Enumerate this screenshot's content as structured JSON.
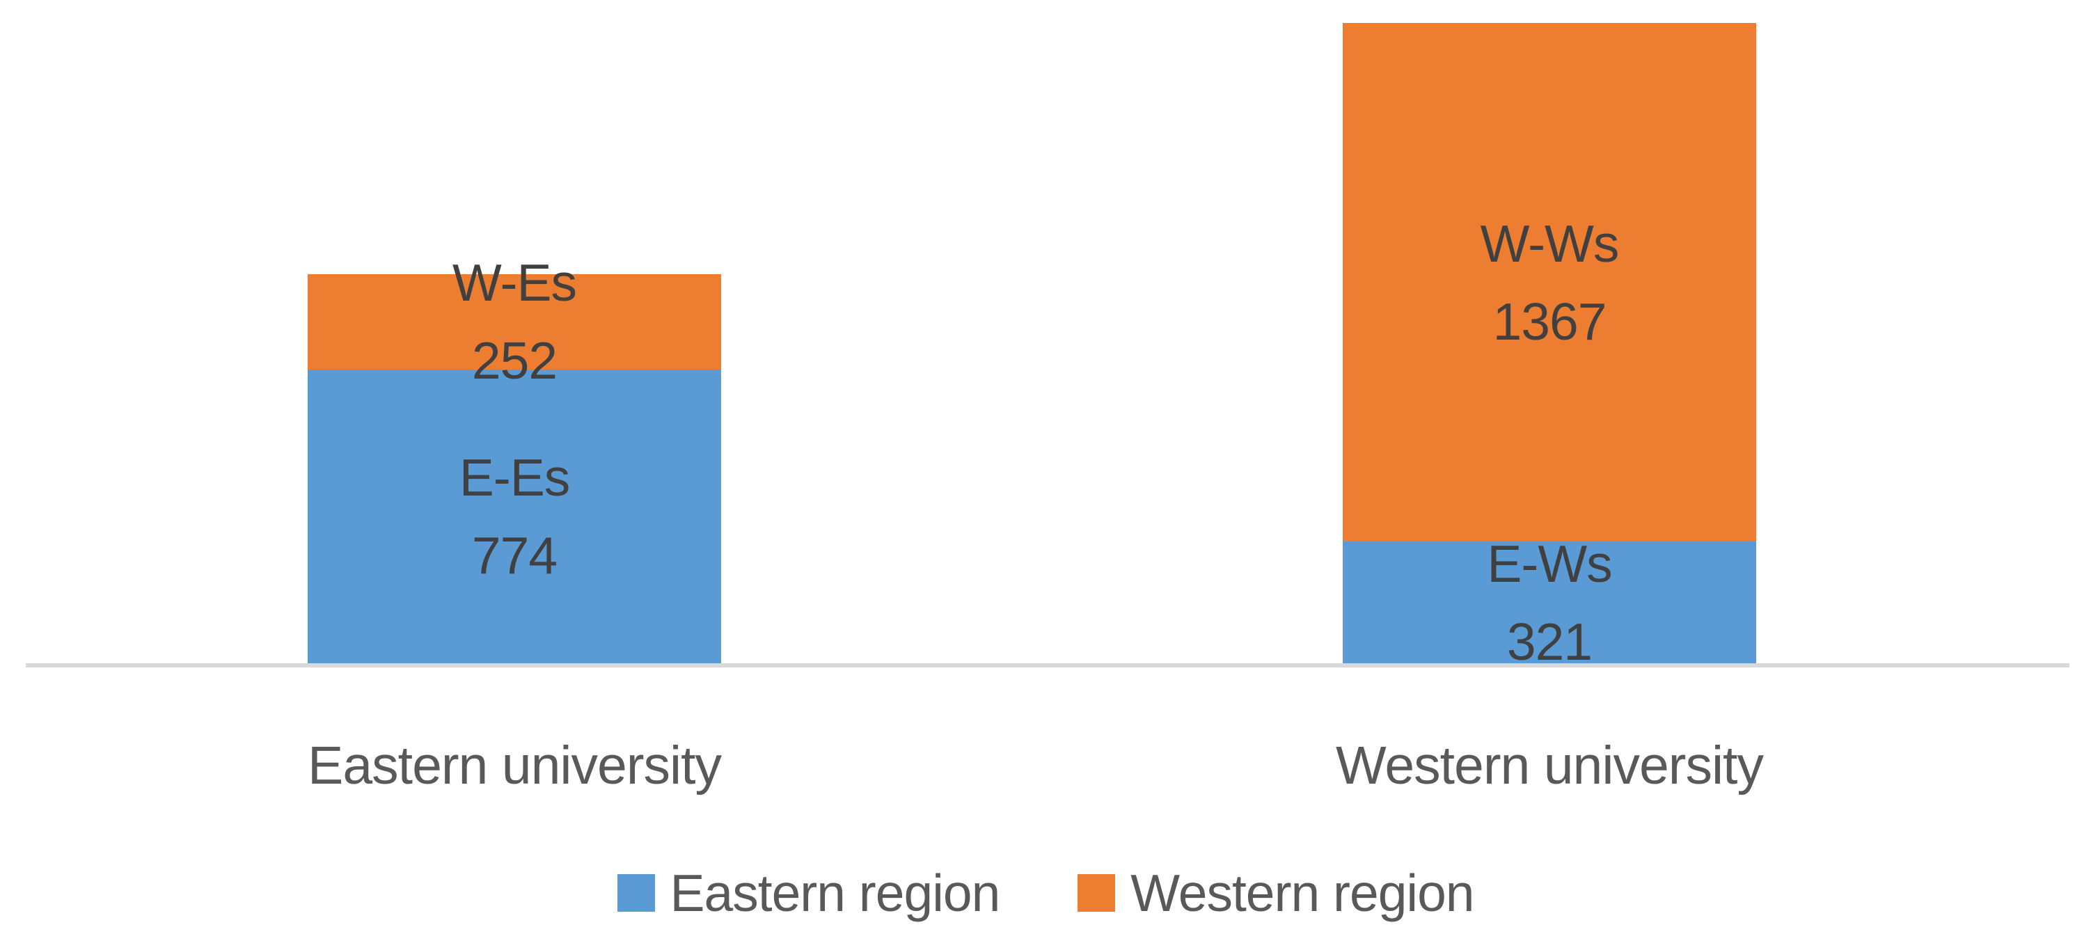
{
  "chart_data": {
    "type": "bar",
    "stacked": true,
    "orientation": "vertical",
    "categories": [
      "Eastern university",
      "Western university"
    ],
    "series": [
      {
        "name": "Eastern region",
        "color": "#5B9BD5",
        "values": [
          774,
          321
        ],
        "segment_codes": [
          "E-Es",
          "E-Ws"
        ]
      },
      {
        "name": "Western region",
        "color": "#ED7D31",
        "values": [
          252,
          1367
        ],
        "segment_codes": [
          "W-Es",
          "W-Ws"
        ]
      }
    ],
    "totals": [
      1026,
      1688
    ],
    "data_label_format": "code above value, centered in each segment",
    "label_color": "#404040",
    "text_color": "#595959",
    "axis": {
      "baseline_color": "#D9D9D9",
      "gridlines": false,
      "y_axis_visible": false
    },
    "legend": {
      "position": "bottom",
      "entries": [
        "Eastern region",
        "Western region"
      ]
    }
  }
}
